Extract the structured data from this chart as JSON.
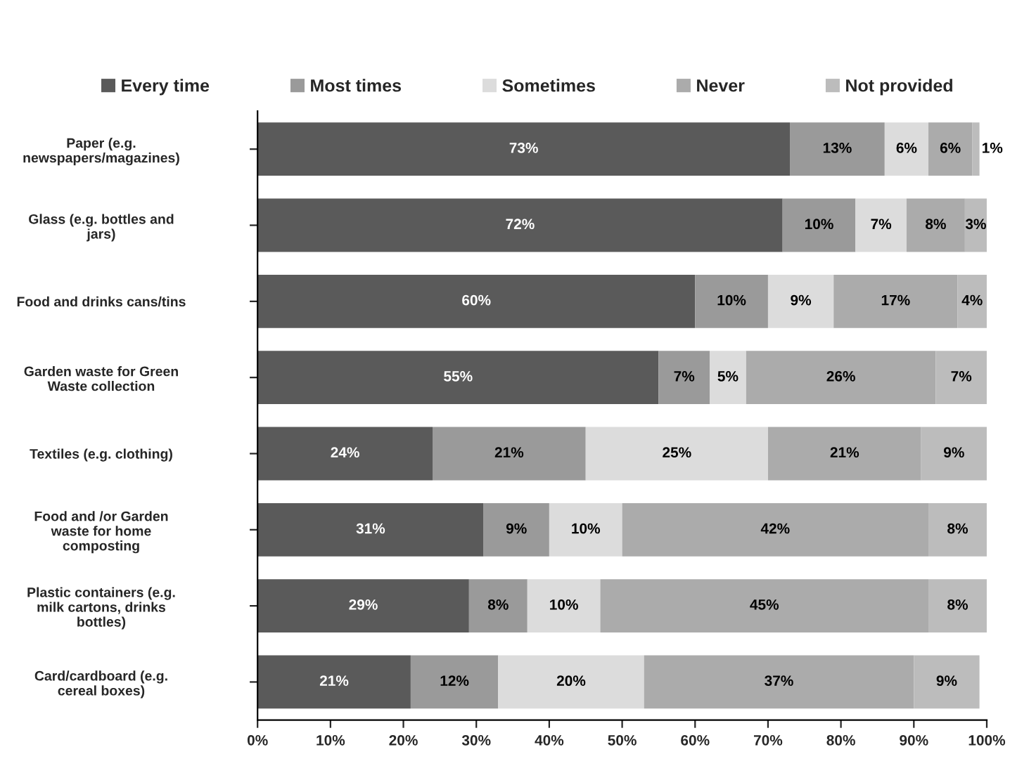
{
  "chart_data": {
    "type": "bar",
    "orientation": "horizontal",
    "stacked": true,
    "grid": false,
    "legend": "top",
    "categories": [
      "Paper (e.g.\nnewspapers/magazines)",
      "Glass (e.g. bottles and\njars)",
      "Food and drinks cans/tins",
      "Garden waste for Green\nWaste collection",
      "Textiles (e.g. clothing)",
      "Food and /or Garden\nwaste for home\ncomposting",
      "Plastic containers (e.g.\nmilk cartons, drinks\nbottles)",
      "Card/cardboard (e.g.\ncereal boxes)"
    ],
    "series": [
      {
        "name": "Every time",
        "color": "#5a5a5a",
        "values": [
          73,
          72,
          60,
          55,
          24,
          31,
          29,
          21
        ],
        "value_labels": [
          "73%",
          "72%",
          "60%",
          "55%",
          "24%",
          "31%",
          "29%",
          "21%"
        ]
      },
      {
        "name": "Most times",
        "color": "#9a9a9a",
        "values": [
          13,
          10,
          10,
          7,
          21,
          9,
          8,
          12
        ],
        "value_labels": [
          "13%",
          "10%",
          "10%",
          "7%",
          "21%",
          "9%",
          "8%",
          "12%"
        ]
      },
      {
        "name": "Sometimes",
        "color": "#dcdcdc",
        "values": [
          6,
          7,
          9,
          5,
          25,
          10,
          10,
          20
        ],
        "value_labels": [
          "6%",
          "7%",
          "9%",
          "5%",
          "25%",
          "10%",
          "10%",
          "20%"
        ]
      },
      {
        "name": "Never",
        "color": "#ababab",
        "values": [
          6,
          8,
          17,
          26,
          21,
          42,
          45,
          37
        ],
        "value_labels": [
          "6%",
          "8%",
          "17%",
          "26%",
          "21%",
          "42%",
          "45%",
          "37%"
        ]
      },
      {
        "name": "Not provided",
        "color": "#bcbcbc",
        "values": [
          1,
          3,
          4,
          7,
          9,
          8,
          8,
          9
        ],
        "value_labels": [
          "1%",
          "3%",
          "4%",
          "7%",
          "9%",
          "8%",
          "8%",
          "9%"
        ]
      }
    ],
    "xlim": [
      0,
      100
    ],
    "xticks": [
      {
        "value": 0,
        "label": "0%"
      },
      {
        "value": 10,
        "label": "10%"
      },
      {
        "value": 20,
        "label": "20%"
      },
      {
        "value": 30,
        "label": "30%"
      },
      {
        "value": 40,
        "label": "40%"
      },
      {
        "value": 50,
        "label": "50%"
      },
      {
        "value": 60,
        "label": "60%"
      },
      {
        "value": 70,
        "label": "70%"
      },
      {
        "value": 80,
        "label": "80%"
      },
      {
        "value": 90,
        "label": "90%"
      },
      {
        "value": 100,
        "label": "100%"
      }
    ]
  }
}
